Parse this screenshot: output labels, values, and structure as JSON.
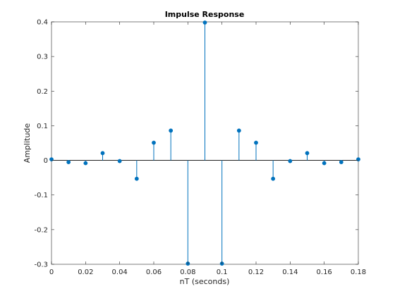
{
  "chart_data": {
    "type": "stem",
    "title": "Impulse Response",
    "xlabel": "nT (seconds)",
    "ylabel": "Amplitude",
    "xlim": [
      0,
      0.18
    ],
    "ylim": [
      -0.3,
      0.4
    ],
    "x_ticks": [
      0,
      0.02,
      0.04,
      0.06,
      0.08,
      0.1,
      0.12,
      0.14,
      0.16,
      0.18
    ],
    "x_tick_labels": [
      "0",
      "0.02",
      "0.04",
      "0.06",
      "0.08",
      "0.1",
      "0.12",
      "0.14",
      "0.16",
      "0.18"
    ],
    "y_ticks": [
      -0.3,
      -0.2,
      -0.1,
      0,
      0.1,
      0.2,
      0.3,
      0.4
    ],
    "y_tick_labels": [
      "-0.3",
      "-0.2",
      "-0.1",
      "0",
      "0.1",
      "0.2",
      "0.3",
      "0.4"
    ],
    "grid": false,
    "series": [
      {
        "color": "#0072BD",
        "x": [
          0,
          0.01,
          0.02,
          0.03,
          0.04,
          0.05,
          0.06,
          0.07,
          0.08,
          0.09,
          0.1,
          0.11,
          0.12,
          0.13,
          0.14,
          0.15,
          0.16,
          0.17,
          0.18
        ],
        "y": [
          0.003,
          -0.005,
          -0.008,
          0.021,
          -0.002,
          -0.053,
          0.051,
          0.086,
          -0.298,
          0.398,
          -0.298,
          0.086,
          0.051,
          -0.053,
          -0.002,
          0.021,
          -0.008,
          -0.005,
          0.003
        ]
      }
    ]
  }
}
